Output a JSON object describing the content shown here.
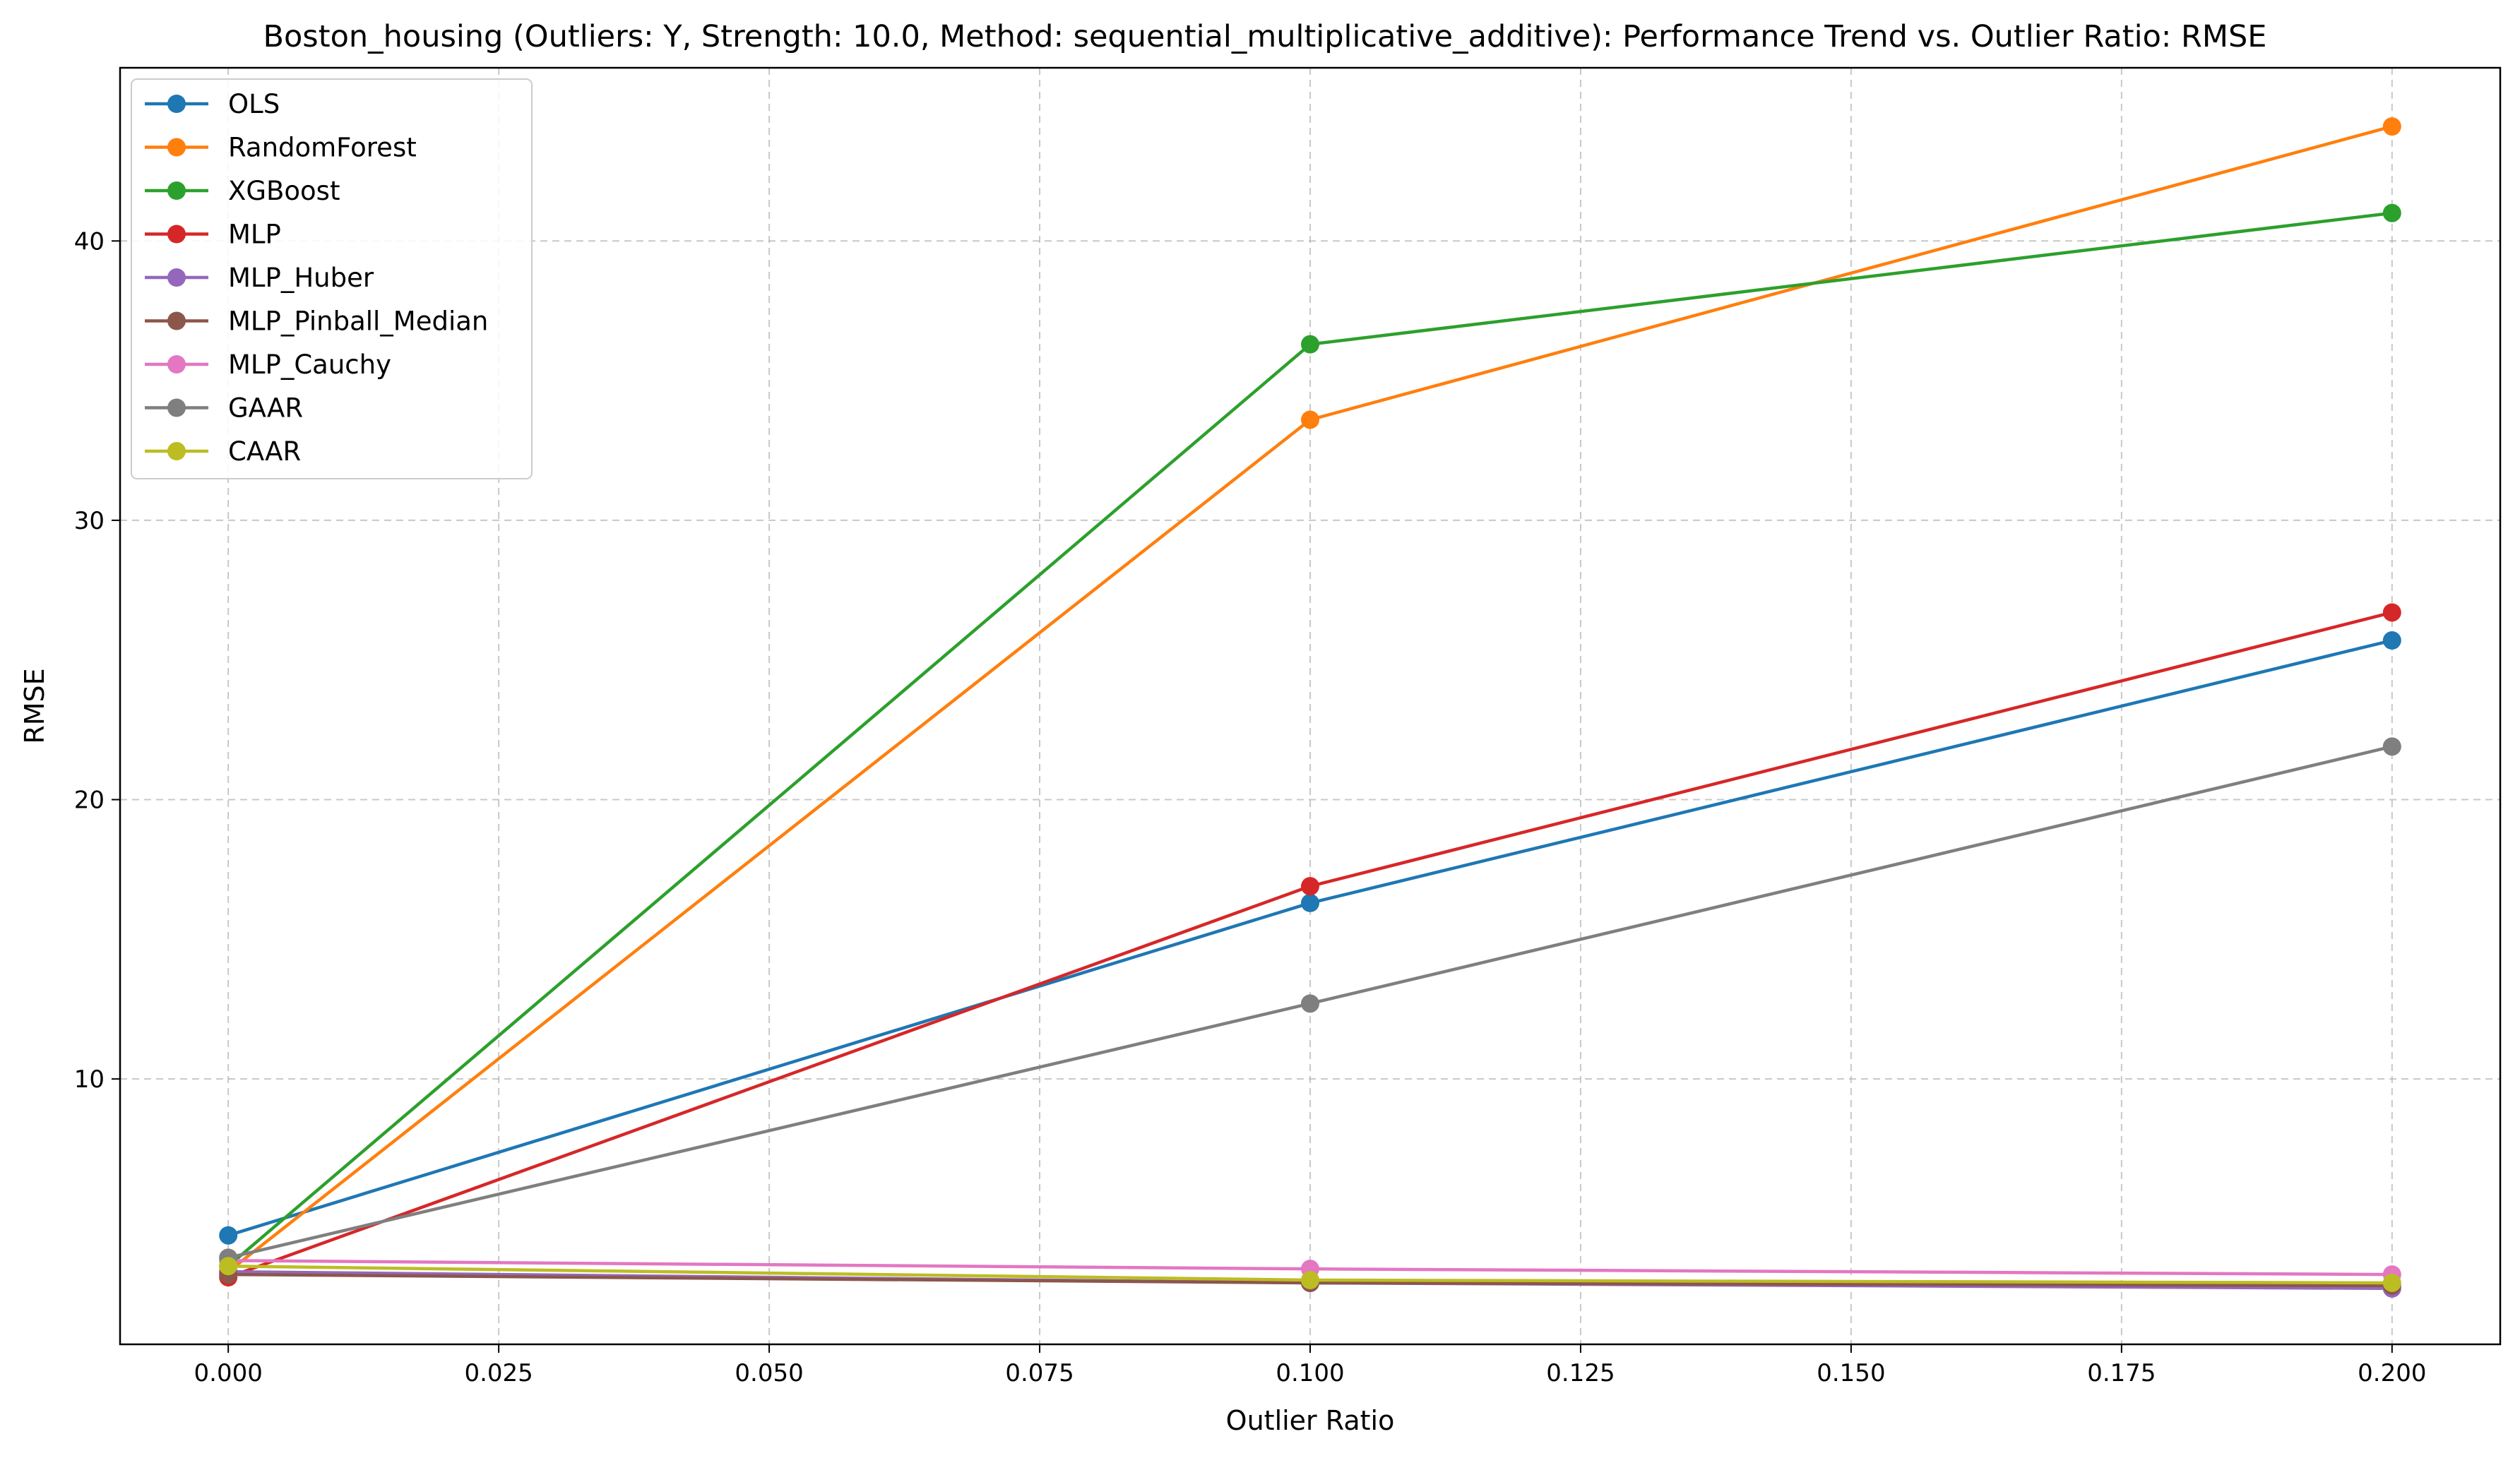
{
  "chart_data": {
    "type": "line",
    "title": "Boston_housing (Outliers: Y, Strength: 10.0, Method: sequential_multiplicative_additive): Performance Trend vs. Outlier Ratio: RMSE",
    "xlabel": "Outlier Ratio",
    "ylabel": "RMSE",
    "x": [
      0.0,
      0.1,
      0.2
    ],
    "xlim": [
      -0.01,
      0.21
    ],
    "ylim": [
      0.5,
      46.2
    ],
    "xticks": [
      0.0,
      0.025,
      0.05,
      0.075,
      0.1,
      0.125,
      0.15,
      0.175,
      0.2
    ],
    "xtick_labels": [
      "0.000",
      "0.025",
      "0.050",
      "0.075",
      "0.100",
      "0.125",
      "0.150",
      "0.175",
      "0.200"
    ],
    "yticks": [
      10,
      20,
      30,
      40
    ],
    "ytick_labels": [
      "10",
      "20",
      "30",
      "40"
    ],
    "grid": true,
    "legend_position": "top-left",
    "series": [
      {
        "name": "OLS",
        "color": "#1f77b4",
        "values": [
          4.4,
          16.3,
          25.7
        ]
      },
      {
        "name": "RandomForest",
        "color": "#ff7f0e",
        "values": [
          3.1,
          33.6,
          44.1
        ]
      },
      {
        "name": "XGBoost",
        "color": "#2ca02c",
        "values": [
          3.3,
          36.3,
          41.0
        ]
      },
      {
        "name": "MLP",
        "color": "#d62728",
        "values": [
          2.9,
          16.9,
          26.7
        ]
      },
      {
        "name": "MLP_Huber",
        "color": "#9467bd",
        "values": [
          3.1,
          2.7,
          2.5
        ]
      },
      {
        "name": "MLP_Pinball_Median",
        "color": "#8c564b",
        "values": [
          3.0,
          2.7,
          2.6
        ]
      },
      {
        "name": "MLP_Cauchy",
        "color": "#e377c2",
        "values": [
          3.5,
          3.2,
          3.0
        ]
      },
      {
        "name": "GAAR",
        "color": "#7f7f7f",
        "values": [
          3.6,
          12.7,
          21.9
        ]
      },
      {
        "name": "CAAR",
        "color": "#bcbd22",
        "values": [
          3.3,
          2.8,
          2.7
        ]
      }
    ]
  }
}
